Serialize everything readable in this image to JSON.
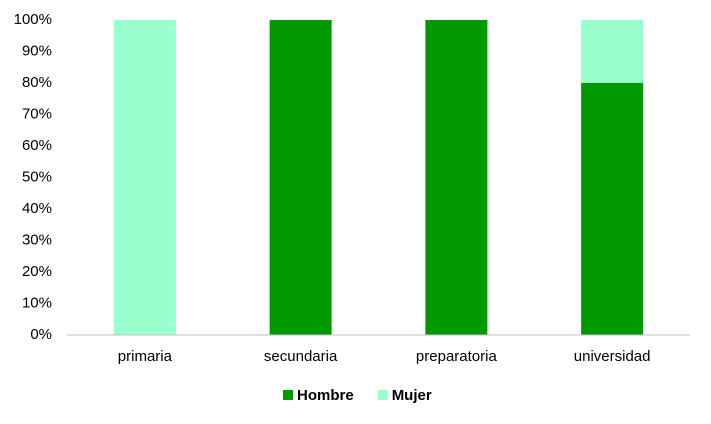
{
  "chart_data": {
    "type": "stacked_bar",
    "categories": [
      "primaria",
      "secundaria",
      "preparatoria",
      "universidad"
    ],
    "series": [
      {
        "name": "Hombre",
        "color": "#009900",
        "values": [
          0,
          100,
          100,
          80
        ]
      },
      {
        "name": "Mujer",
        "color": "#99ffcc",
        "values": [
          100,
          0,
          0,
          20
        ]
      }
    ],
    "ylim": [
      0,
      100
    ],
    "yticks": [
      {
        "value": 0,
        "label": "0%"
      },
      {
        "value": 10,
        "label": "10%"
      },
      {
        "value": 20,
        "label": "20%"
      },
      {
        "value": 30,
        "label": "30%"
      },
      {
        "value": 40,
        "label": "40%"
      },
      {
        "value": 50,
        "label": "50%"
      },
      {
        "value": 60,
        "label": "60%"
      },
      {
        "value": 70,
        "label": "70%"
      },
      {
        "value": 80,
        "label": "80%"
      },
      {
        "value": 90,
        "label": "90%"
      },
      {
        "value": 100,
        "label": "100%"
      }
    ],
    "grid": false,
    "legend": "bottom"
  }
}
